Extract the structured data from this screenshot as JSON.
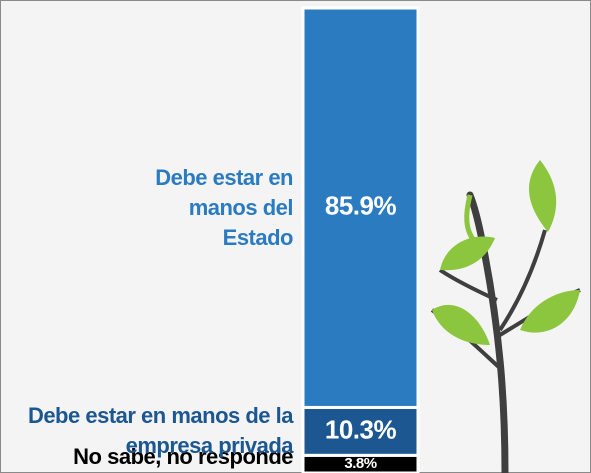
{
  "chart_data": {
    "type": "stacked-bar",
    "ylim": [
      0,
      100
    ],
    "series": [
      {
        "name": "Debe estar en manos del Estado",
        "color": "#2b7bc0",
        "values": [
          85.9
        ],
        "value_labels": [
          "85.9%"
        ]
      },
      {
        "name": "Debe estar en manos de la empresa privada",
        "color": "#1c5791",
        "values": [
          10.3
        ],
        "value_labels": [
          "10.3%"
        ]
      },
      {
        "name": "No sabe, no responde",
        "color": "#000000",
        "values": [
          3.8
        ],
        "value_labels": [
          "3.8%"
        ]
      }
    ]
  }
}
